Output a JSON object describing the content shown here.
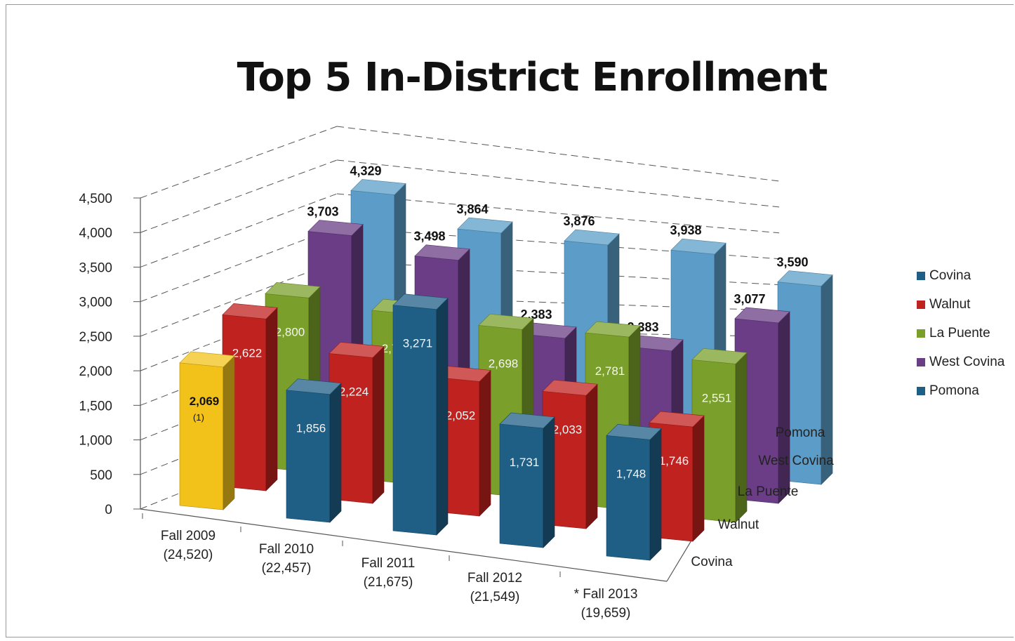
{
  "chart_data": {
    "type": "bar",
    "title": "Top 5 In-District Enrollment",
    "categories": [
      "Fall 2009",
      "Fall 2010",
      "Fall 2011",
      "Fall 2012",
      "* Fall 2013"
    ],
    "category_totals": [
      "(24,520)",
      "(22,457)",
      "(21,675)",
      "(21,549)",
      "(19,659)"
    ],
    "ylim": [
      0,
      4500
    ],
    "yticks": [
      "0",
      "500",
      "1,000",
      "1,500",
      "2,000",
      "2,500",
      "3,000",
      "3,500",
      "4,000",
      "4,500"
    ],
    "depth_labels": [
      "Covina",
      "Walnut",
      "La Puente",
      "West Covina",
      "Pomona"
    ],
    "series": [
      {
        "name": "Covina",
        "color": "#1f5f86",
        "values": [
          2069,
          1856,
          3271,
          1731,
          1748
        ],
        "labels": [
          "2,069",
          "1,856",
          "3,271",
          "1,731",
          "1,748"
        ]
      },
      {
        "name": "Walnut",
        "color": "#c0221f",
        "values": [
          2622,
          2224,
          2052,
          2033,
          1746
        ],
        "labels": [
          "2,622",
          "2,224",
          "2,052",
          "2,033",
          "1,746"
        ]
      },
      {
        "name": "La Puente",
        "color": "#7a9f2a",
        "values": [
          2800,
          2736,
          2698,
          2781,
          2551
        ],
        "labels": [
          "2,800",
          "2,736",
          "2,698",
          "2,781",
          "2,551"
        ]
      },
      {
        "name": "West Covina",
        "color": "#6a3d86",
        "values": [
          3703,
          3498,
          2383,
          2383,
          3077
        ],
        "labels": [
          "3,703",
          "3,498",
          "2,383",
          "2,383",
          "3,077"
        ]
      },
      {
        "name": "Pomona",
        "color": "#5b9dc8",
        "values": [
          4329,
          3864,
          3876,
          3938,
          3590
        ],
        "labels": [
          "4,329",
          "3,864",
          "3,876",
          "3,938",
          "3,590"
        ]
      }
    ],
    "highlight": {
      "category": "Fall 2009",
      "series": "Covina",
      "color": "#f2c21b",
      "note": "(1)"
    },
    "legend": {
      "position": "right",
      "items": [
        {
          "name": "Covina",
          "color": "#1f5f86"
        },
        {
          "name": "Walnut",
          "color": "#c0221f"
        },
        {
          "name": "La Puente",
          "color": "#7a9f2a"
        },
        {
          "name": "West Covina",
          "color": "#6a3d86"
        },
        {
          "name": "Pomona",
          "color": "#1f5f86"
        }
      ]
    },
    "grid": true
  }
}
